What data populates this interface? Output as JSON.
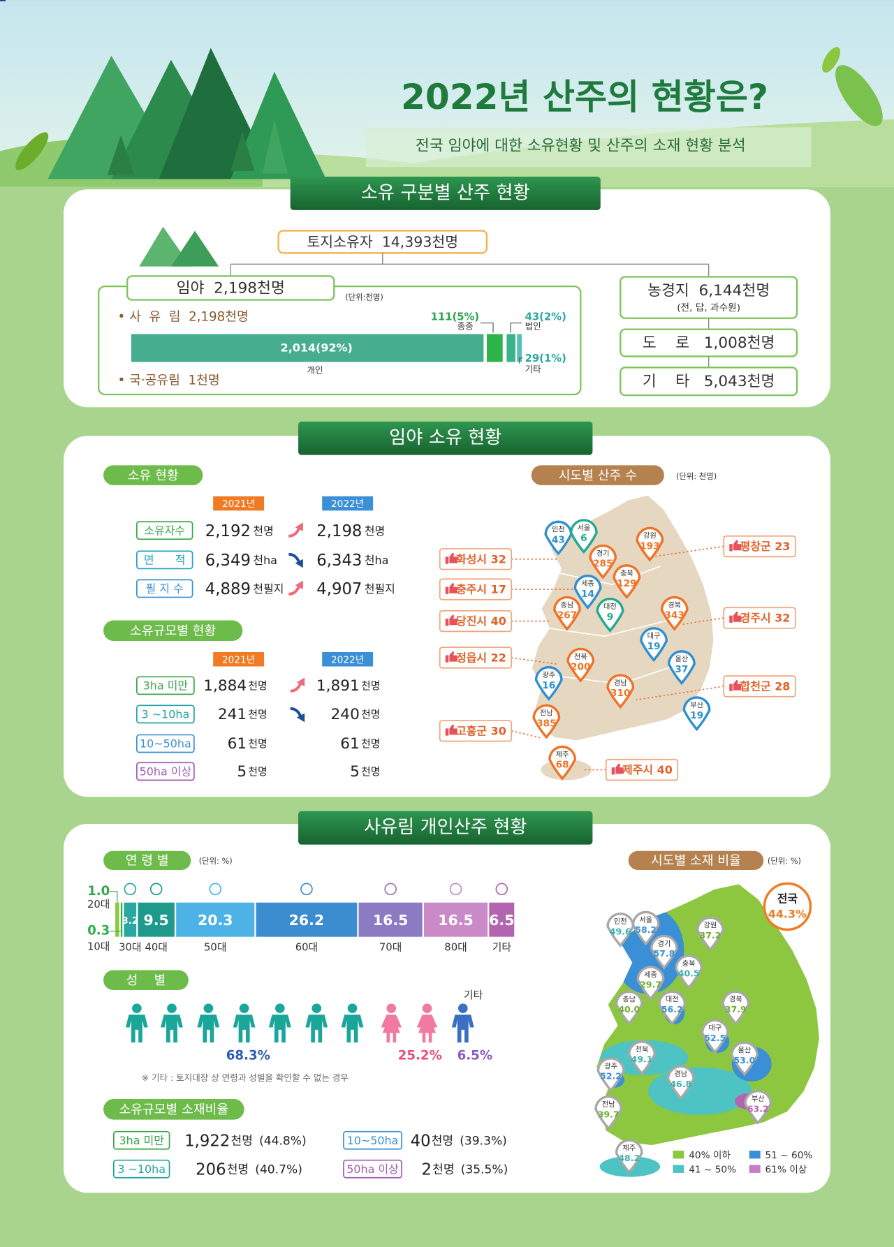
{
  "header": {
    "title": "2022년 산주의 현황은?",
    "subtitle": "전국 임야에 대한 소유현황 및 산주의 소재 현황 분석"
  },
  "ownership": {
    "banner": "소유 구분별 산주 현황",
    "total": "토지소유자  14,393천명",
    "forest": "임야  2,198천명",
    "unit": "(단위:천명)",
    "private": "• 사  유  림  2,198천명",
    "public": "• 국·공유림  1천명",
    "bar": {
      "individual": "2,014(92%)",
      "individual_label": "개인",
      "clan": "111(5%)",
      "clan_label": "종중",
      "corp": "43(2%)",
      "corp_label": "법인",
      "other": "29(1%)",
      "other_label": "기타"
    },
    "farmland": "농경지  6,144천명",
    "farmland_note": "(전, 답, 과수원)",
    "road": "도    로   1,008천명",
    "etc": "기    타   5,043천명"
  },
  "forest_status": {
    "banner": "임야 소유 현황",
    "status": {
      "title": "소유 현황",
      "years": [
        "2021년",
        "2022년"
      ],
      "rows": [
        {
          "label": "소유자수",
          "v2021": "2,192",
          "u2021": "천명",
          "trend": "up",
          "v2022": "2,198",
          "u2022": "천명"
        },
        {
          "label": "면      적",
          "v2021": "6,349",
          "u2021": "천ha",
          "trend": "down",
          "v2022": "6,343",
          "u2022": "천ha"
        },
        {
          "label": "필 지 수",
          "v2021": "4,889",
          "u2021": "천필지",
          "trend": "up",
          "v2022": "4,907",
          "u2022": "천필지"
        }
      ]
    },
    "scale": {
      "title": "소유규모별 현황",
      "years": [
        "2021년",
        "2022년"
      ],
      "rows": [
        {
          "label": "3ha 미만",
          "v2021": "1,884",
          "u2021": "천명",
          "trend": "up",
          "v2022": "1,891",
          "u2022": "천명"
        },
        {
          "label": "3 ~10ha",
          "v2021": "241",
          "u2021": "천명",
          "trend": "down",
          "v2022": "240",
          "u2022": "천명"
        },
        {
          "label": "10~50ha",
          "v2021": "61",
          "u2021": "천명",
          "trend": "flat",
          "v2022": "61",
          "u2022": "천명"
        },
        {
          "label": "50ha 이상",
          "v2021": "5",
          "u2021": "천명",
          "trend": "flat",
          "v2022": "5",
          "u2022": "천명"
        }
      ]
    },
    "map": {
      "title": "시도별 산주 수",
      "unit": "(단위: 천명)",
      "regions": [
        {
          "name": "인천",
          "value": "43",
          "color": "#2f8fd0"
        },
        {
          "name": "서울",
          "value": "6",
          "color": "#22a98f"
        },
        {
          "name": "강원",
          "value": "193",
          "color": "#ee7326"
        },
        {
          "name": "경기",
          "value": "285",
          "color": "#ee7326"
        },
        {
          "name": "충북",
          "value": "129",
          "color": "#ee7326"
        },
        {
          "name": "세종",
          "value": "14",
          "color": "#2f8fd0"
        },
        {
          "name": "충남",
          "value": "267",
          "color": "#ee7326"
        },
        {
          "name": "대전",
          "value": "9",
          "color": "#22a98f"
        },
        {
          "name": "경북",
          "value": "343",
          "color": "#ee7326"
        },
        {
          "name": "대구",
          "value": "19",
          "color": "#2f8fd0"
        },
        {
          "name": "울산",
          "value": "37",
          "color": "#2f8fd0"
        },
        {
          "name": "전북",
          "value": "200",
          "color": "#ee7326"
        },
        {
          "name": "광주",
          "value": "16",
          "color": "#2f8fd0"
        },
        {
          "name": "경남",
          "value": "310",
          "color": "#ee7326"
        },
        {
          "name": "부산",
          "value": "19",
          "color": "#2f8fd0"
        },
        {
          "name": "전남",
          "value": "385",
          "color": "#ee7326"
        },
        {
          "name": "제주",
          "value": "68",
          "color": "#ee7326"
        }
      ],
      "callouts": [
        "화성시 32",
        "충주시 17",
        "당진시 40",
        "정읍시 22",
        "고흥군 30",
        "평창군 23",
        "경주시 32",
        "합천군 28",
        "제주시 40"
      ]
    }
  },
  "private_owners": {
    "banner": "사유림 개인산주 현황",
    "age": {
      "title": "연 령 별",
      "unit": "(단위: %)",
      "groups": [
        "20대",
        "10대",
        "30대",
        "40대",
        "50대",
        "60대",
        "70대",
        "80대",
        "기타"
      ],
      "values": [
        {
          "value": 1,
          "label": "1.0"
        },
        0.3,
        3.2,
        9.5,
        20.3,
        26.2,
        16.5,
        16.5,
        6.5
      ],
      "colors": [
        "#8dc63f",
        "#2bb24c",
        "#2aa7a0",
        "#1d9a8c",
        "#4db3e6",
        "#3b8dd0",
        "#8c7bc3",
        "#c98ac7",
        "#b264b0"
      ]
    },
    "gender": {
      "title": "성    별",
      "values": [
        "68.3%",
        "25.2%",
        "6.5%"
      ],
      "colors": [
        "#1aa69a",
        "#f07aa0",
        "#3a6fc4"
      ],
      "other_label": "기타",
      "note": "※ 기타 : 토지대장 상 연령과 성별을 확인할 수 없는 경우"
    },
    "scale_ratio": {
      "title": "소유규모별 소재비율",
      "rows": [
        {
          "label": "3ha 미만",
          "value": "1,922",
          "unit": "천명",
          "share": "(44.8%)"
        },
        {
          "label": "3 ~10ha",
          "value": "206",
          "unit": "천명",
          "share": "(40.7%)"
        },
        {
          "label": "10~50ha",
          "value": "40",
          "unit": "천명",
          "share": "(39.3%)"
        },
        {
          "label": "50ha 이상",
          "value": "2",
          "unit": "천명",
          "share": "(35.5%)"
        }
      ]
    },
    "map": {
      "title": "시도별 소재 비율",
      "unit": "(단위: %)",
      "national_label": "전국",
      "national": "44.3%",
      "regions": [
        {
          "name": "인천",
          "value": "49.6",
          "color": "#3bb0b0"
        },
        {
          "name": "서울",
          "value": "58.2",
          "color": "#3a8fd6"
        },
        {
          "name": "강원",
          "value": "37.2",
          "color": "#6cae2c"
        },
        {
          "name": "경기",
          "value": "57.8",
          "color": "#3a8fd6"
        },
        {
          "name": "충북",
          "value": "40.5",
          "color": "#3bb0b0"
        },
        {
          "name": "세종",
          "value": "29.7",
          "color": "#6cae2c"
        },
        {
          "name": "충남",
          "value": "40.0",
          "color": "#6cae2c"
        },
        {
          "name": "대전",
          "value": "56.2",
          "color": "#3a8fd6"
        },
        {
          "name": "경북",
          "value": "37.9",
          "color": "#6cae2c"
        },
        {
          "name": "대구",
          "value": "52.5",
          "color": "#3a8fd6"
        },
        {
          "name": "울산",
          "value": "53.0",
          "color": "#3a8fd6"
        },
        {
          "name": "전북",
          "value": "49.1",
          "color": "#3bb0b0"
        },
        {
          "name": "광주",
          "value": "52.2",
          "color": "#3a8fd6"
        },
        {
          "name": "경남",
          "value": "46.8",
          "color": "#3bb0b0"
        },
        {
          "name": "부산",
          "value": "63.2",
          "color": "#b463b3"
        },
        {
          "name": "전남",
          "value": "39.7",
          "color": "#6cae2c"
        },
        {
          "name": "제주",
          "value": "48.2",
          "color": "#3bb0b0"
        }
      ],
      "legend": [
        {
          "label": "40% 이하",
          "color": "#8dc63f"
        },
        {
          "label": "51 ~ 60%",
          "color": "#3a8fd6"
        },
        {
          "label": "41 ~ 50%",
          "color": "#4dc3c3"
        },
        {
          "label": "61% 이상",
          "color": "#c77dc3"
        }
      ]
    }
  }
}
